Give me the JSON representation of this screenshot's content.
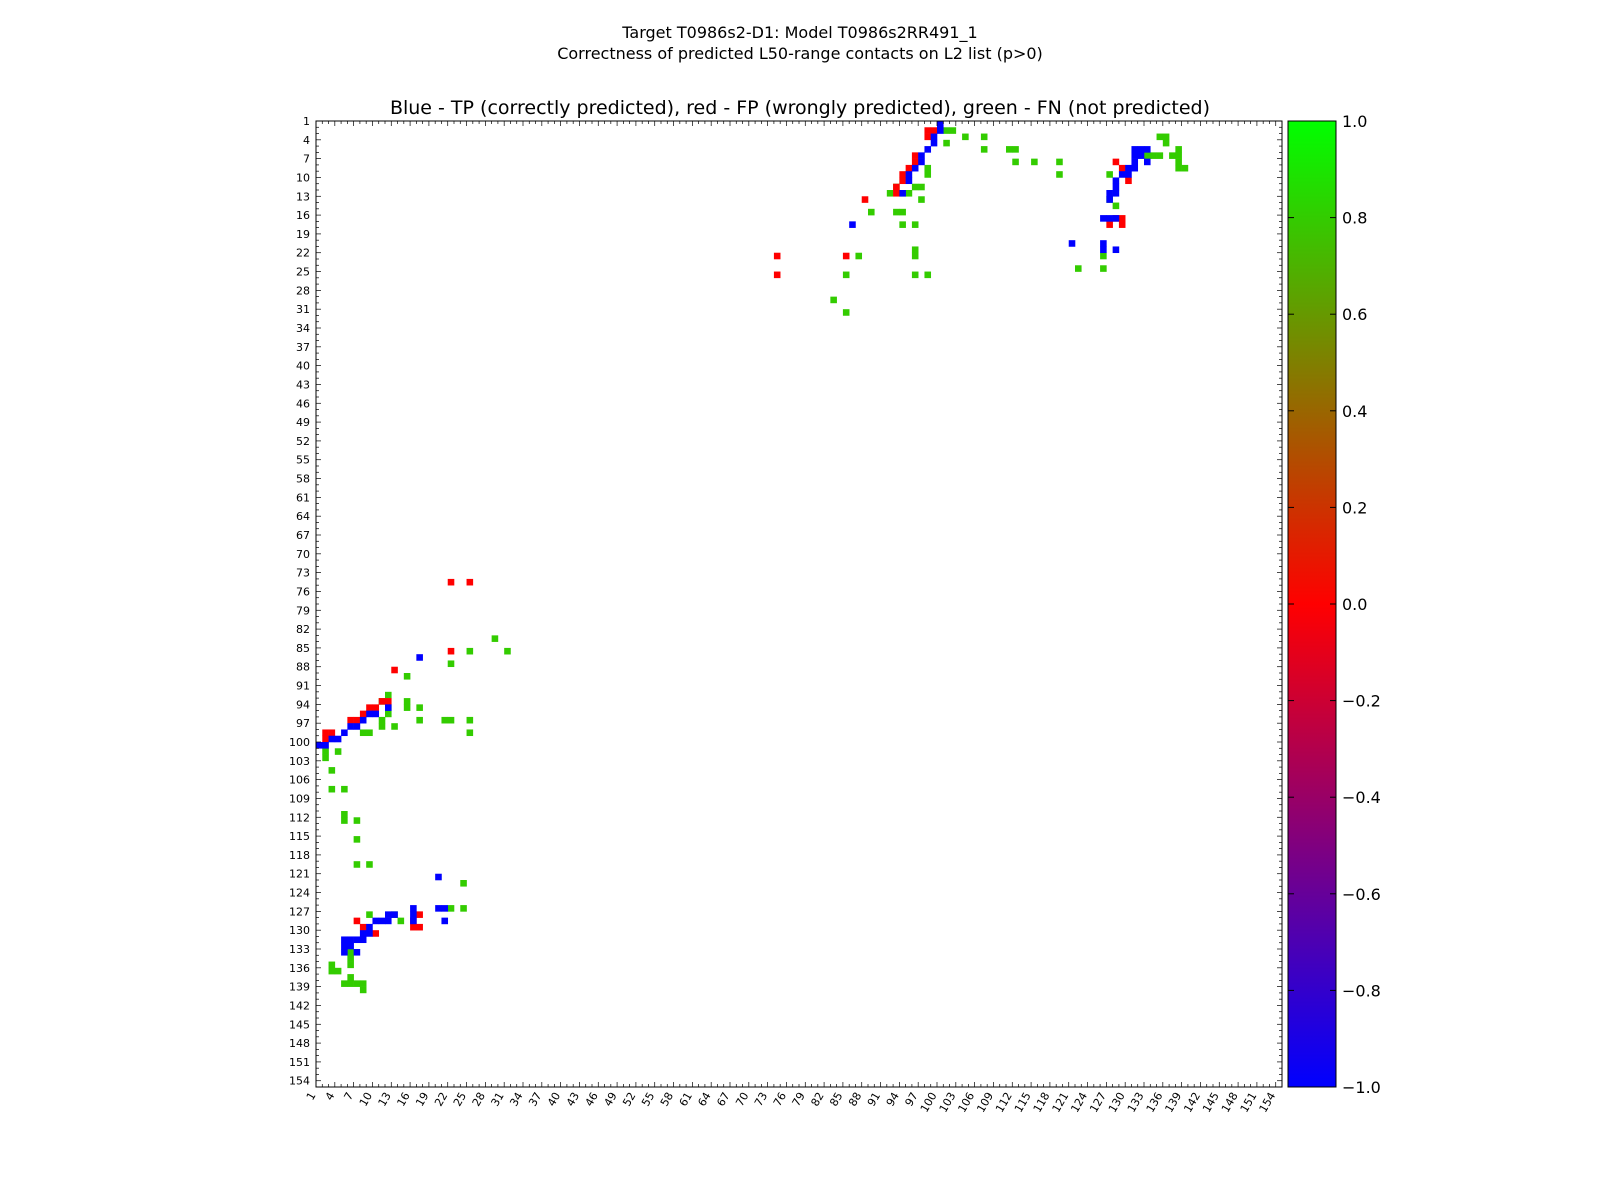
{
  "chart_data": {
    "type": "heatmap",
    "title_lines": [
      "Target T0986s2-D1: Model T0986s2RR491_1",
      "Correctness of predicted L50-range contacts on L2 list (p>0)"
    ],
    "subtitle": "Blue - TP (correctly predicted), red - FP (wrongly predicted), green - FN (not predicted)",
    "axis_range": [
      1,
      155
    ],
    "tick_labels": [
      "1",
      "4",
      "7",
      "10",
      "13",
      "16",
      "19",
      "22",
      "25",
      "28",
      "31",
      "34",
      "37",
      "40",
      "43",
      "46",
      "49",
      "52",
      "55",
      "58",
      "61",
      "64",
      "67",
      "70",
      "73",
      "76",
      "79",
      "82",
      "85",
      "88",
      "91",
      "94",
      "97",
      "100",
      "103",
      "106",
      "109",
      "112",
      "115",
      "118",
      "121",
      "124",
      "127",
      "130",
      "133",
      "136",
      "139",
      "142",
      "145",
      "148",
      "151",
      "154"
    ],
    "colorbar": {
      "range": [
        -1.0,
        1.0
      ],
      "labels": [
        "1.0",
        "0.8",
        "0.6",
        "0.4",
        "0.2",
        "0.0",
        "−0.2",
        "−0.4",
        "−0.6",
        "−0.8",
        "−1.0"
      ],
      "colors": [
        "#0000ff",
        "#ff0000",
        "#00ff00"
      ]
    },
    "categories": {
      "tp": {
        "label": "TP (correctly predicted)",
        "value": -1.0,
        "color": "#0000ff"
      },
      "fp": {
        "label": "FP (wrongly predicted)",
        "value": 0.0,
        "color": "#ff0000"
      },
      "fn": {
        "label": "FN (not predicted)",
        "value": 0.75,
        "color": "#33cc00"
      }
    },
    "cells": {
      "tp": [
        [
          100,
          1
        ],
        [
          100,
          2
        ],
        [
          99,
          3
        ],
        [
          99,
          4
        ],
        [
          98,
          5
        ],
        [
          97,
          6
        ],
        [
          97,
          7
        ],
        [
          96,
          8
        ],
        [
          95,
          9
        ],
        [
          95,
          10
        ],
        [
          94,
          12
        ],
        [
          86,
          17
        ],
        [
          131,
          5
        ],
        [
          132,
          5
        ],
        [
          133,
          5
        ],
        [
          131,
          6
        ],
        [
          132,
          6
        ],
        [
          131,
          7
        ],
        [
          133,
          7
        ],
        [
          130,
          8
        ],
        [
          131,
          8
        ],
        [
          129,
          9
        ],
        [
          130,
          9
        ],
        [
          128,
          10
        ],
        [
          128,
          11
        ],
        [
          127,
          12
        ],
        [
          128,
          12
        ],
        [
          127,
          13
        ],
        [
          126,
          16
        ],
        [
          127,
          16
        ],
        [
          128,
          16
        ],
        [
          121,
          20
        ],
        [
          126,
          20
        ],
        [
          126,
          21
        ],
        [
          128,
          21
        ]
      ],
      "fp": [
        [
          98,
          2
        ],
        [
          99,
          2
        ],
        [
          98,
          3
        ],
        [
          96,
          6
        ],
        [
          96,
          7
        ],
        [
          95,
          8
        ],
        [
          94,
          9
        ],
        [
          94,
          10
        ],
        [
          93,
          11
        ],
        [
          93,
          12
        ],
        [
          88,
          13
        ],
        [
          128,
          7
        ],
        [
          129,
          8
        ],
        [
          130,
          10
        ],
        [
          128,
          16
        ],
        [
          129,
          16
        ],
        [
          129,
          17
        ],
        [
          127,
          17
        ],
        [
          74,
          22
        ],
        [
          85,
          22
        ],
        [
          74,
          25
        ]
      ],
      "fn": [
        [
          101,
          2
        ],
        [
          102,
          2
        ],
        [
          104,
          3
        ],
        [
          107,
          3
        ],
        [
          101,
          4
        ],
        [
          107,
          5
        ],
        [
          111,
          5
        ],
        [
          112,
          5
        ],
        [
          98,
          8
        ],
        [
          98,
          9
        ],
        [
          96,
          11
        ],
        [
          97,
          11
        ],
        [
          94,
          12
        ],
        [
          95,
          12
        ],
        [
          97,
          13
        ],
        [
          93,
          11
        ],
        [
          92,
          12
        ],
        [
          89,
          15
        ],
        [
          93,
          15
        ],
        [
          94,
          15
        ],
        [
          94,
          17
        ],
        [
          96,
          17
        ],
        [
          96,
          21
        ],
        [
          96,
          22
        ],
        [
          87,
          22
        ],
        [
          85,
          25
        ],
        [
          96,
          25
        ],
        [
          98,
          25
        ],
        [
          83,
          29
        ],
        [
          85,
          31
        ],
        [
          112,
          7
        ],
        [
          115,
          7
        ],
        [
          119,
          7
        ],
        [
          119,
          9
        ],
        [
          135,
          3
        ],
        [
          136,
          3
        ],
        [
          136,
          4
        ],
        [
          138,
          5
        ],
        [
          138,
          6
        ],
        [
          133,
          6
        ],
        [
          134,
          6
        ],
        [
          135,
          6
        ],
        [
          137,
          6
        ],
        [
          138,
          7
        ],
        [
          138,
          8
        ],
        [
          139,
          8
        ],
        [
          127,
          9
        ],
        [
          128,
          14
        ],
        [
          127,
          13
        ],
        [
          126,
          22
        ],
        [
          122,
          24
        ],
        [
          126,
          24
        ]
      ]
    }
  }
}
